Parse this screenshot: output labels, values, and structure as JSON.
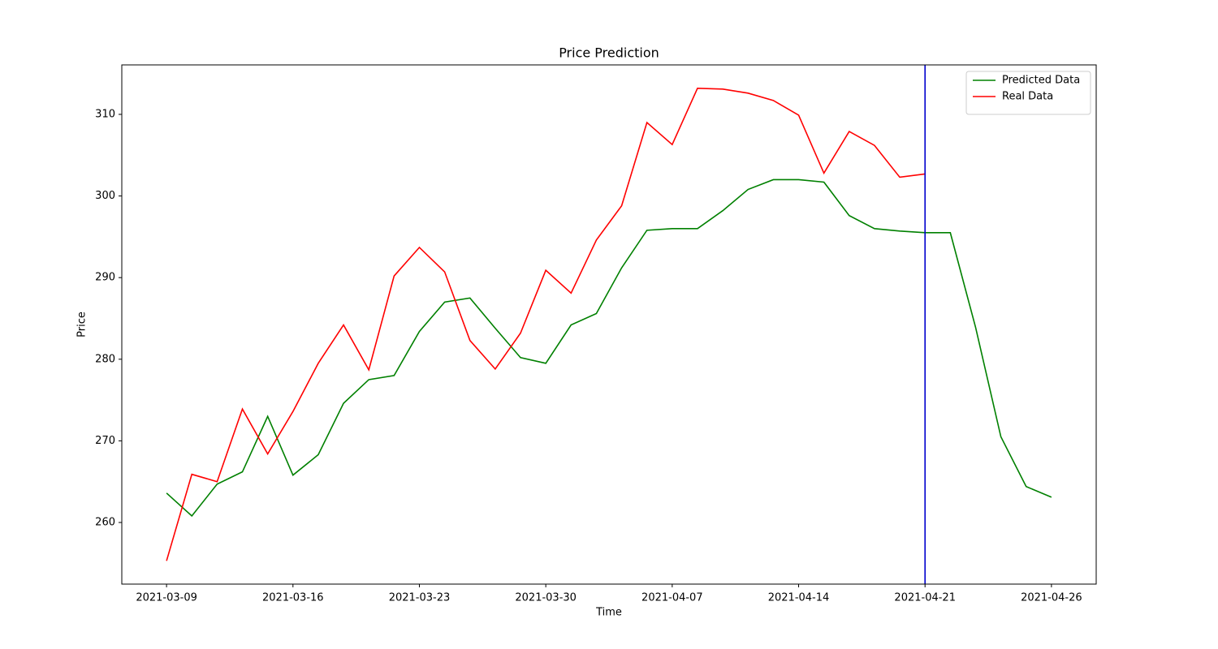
{
  "chart_data": {
    "type": "line",
    "title": "Price Prediction",
    "x_label": "Time",
    "y_label": "Price",
    "x": [
      0,
      1,
      2,
      3,
      4,
      5,
      6,
      7,
      8,
      9,
      10,
      11,
      12,
      13,
      14,
      15,
      16,
      17,
      18,
      19,
      20,
      21,
      22,
      23,
      24,
      25,
      26,
      27,
      28,
      29,
      30,
      31,
      32,
      33,
      34,
      35
    ],
    "series": [
      {
        "name": "Predicted Data",
        "color": "#008000",
        "values": [
          263.6,
          260.8,
          264.7,
          266.2,
          273.0,
          265.8,
          268.3,
          274.6,
          277.5,
          278.0,
          283.4,
          287.0,
          287.5,
          283.8,
          280.2,
          279.5,
          284.2,
          285.6,
          291.2,
          295.8,
          296.0,
          296.0,
          298.2,
          300.8,
          302.0,
          302.0,
          301.7,
          297.6,
          296.0,
          295.7,
          295.5,
          295.5,
          283.9,
          270.5,
          264.4,
          263.1
        ]
      },
      {
        "name": "Real Data",
        "color": "#ff0000",
        "values": [
          255.3,
          265.9,
          265.0,
          273.9,
          268.4,
          273.6,
          279.5,
          284.2,
          278.7,
          290.2,
          293.7,
          290.7,
          282.3,
          278.8,
          283.2,
          290.9,
          288.1,
          294.6,
          298.8,
          309.0,
          306.3,
          313.2,
          313.1,
          312.6,
          311.7,
          309.9,
          302.8,
          307.9,
          306.2,
          302.3,
          302.7,
          null,
          null,
          null,
          null,
          null
        ]
      }
    ],
    "vline": {
      "x": 30,
      "color": "#0000cd"
    },
    "xlim": [
      -1.77,
      36.77
    ],
    "xticks": [
      {
        "value": 0,
        "label": "2021-03-09"
      },
      {
        "value": 5,
        "label": "2021-03-16"
      },
      {
        "value": 10,
        "label": "2021-03-23"
      },
      {
        "value": 15,
        "label": "2021-03-30"
      },
      {
        "value": 20,
        "label": "2021-04-07"
      },
      {
        "value": 25,
        "label": "2021-04-14"
      },
      {
        "value": 30,
        "label": "2021-04-21"
      },
      {
        "value": 35,
        "label": "2021-04-26"
      }
    ],
    "ylim": [
      252.45,
      316.06
    ],
    "yticks": [
      260,
      270,
      280,
      290,
      300,
      310
    ],
    "grid": false,
    "legend": "upper right"
  }
}
